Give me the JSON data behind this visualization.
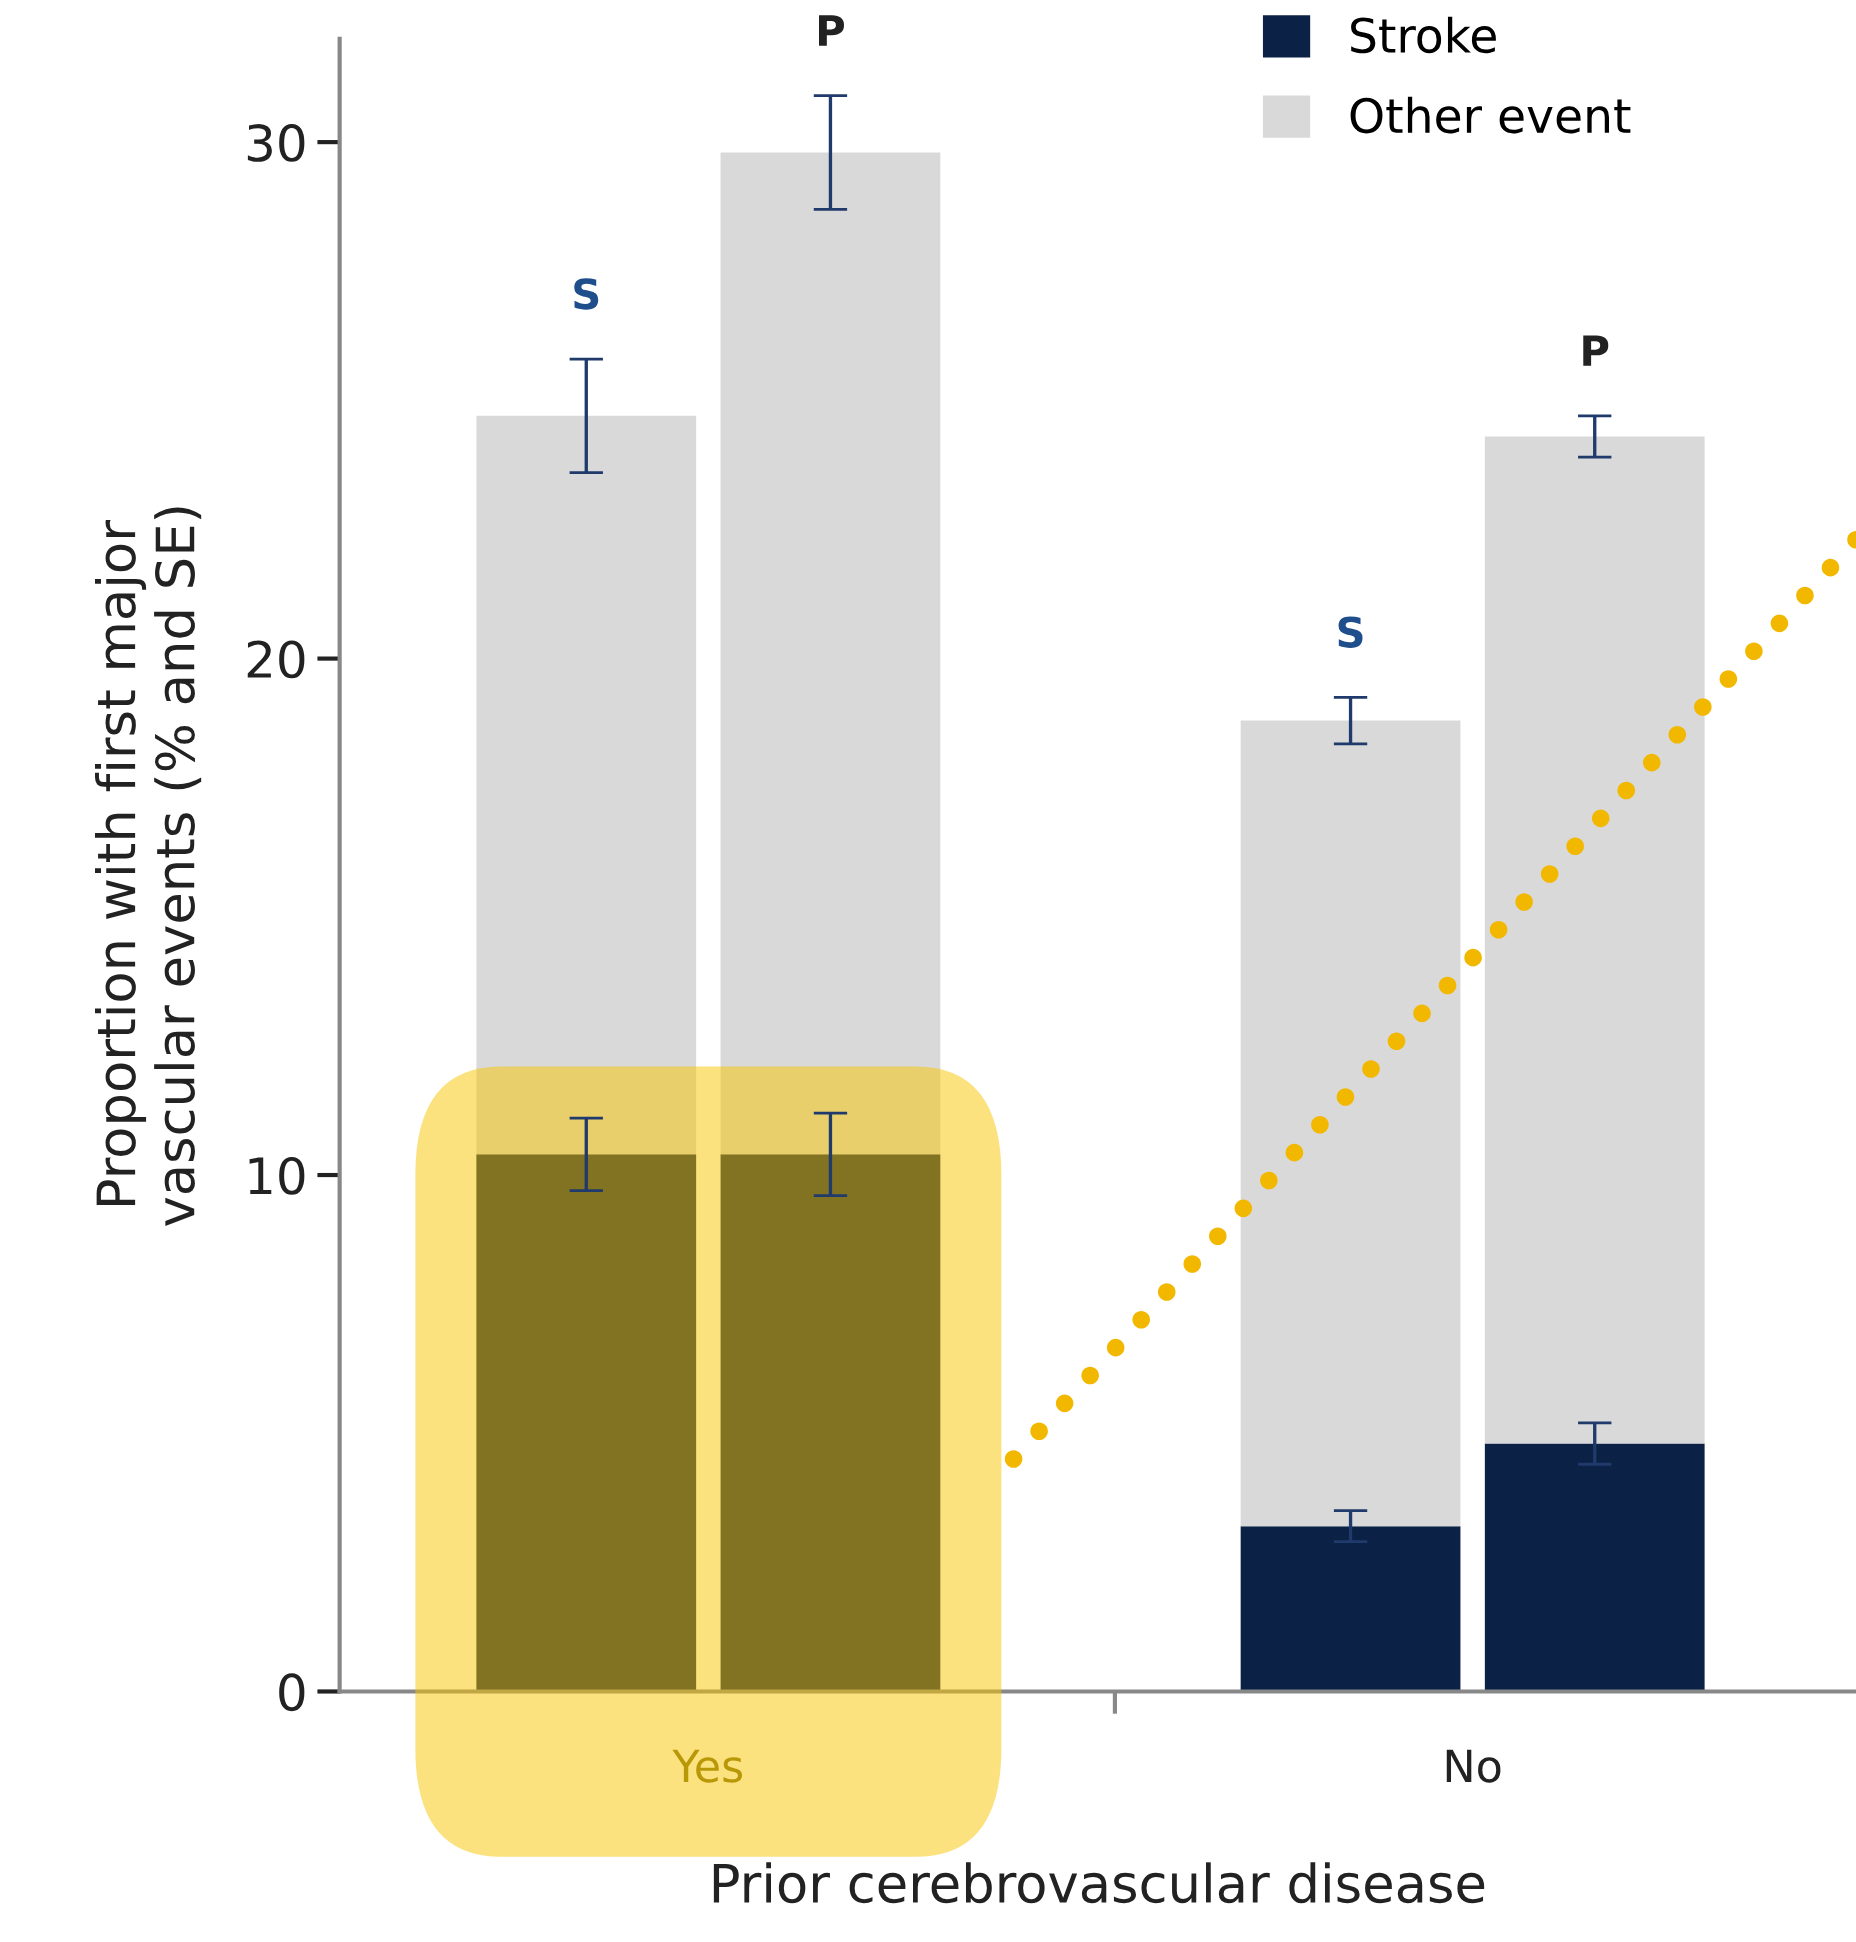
{
  "chart_data": {
    "type": "bar",
    "stacked": true,
    "categories": [
      "S",
      "P",
      "S",
      "P"
    ],
    "series": [
      {
        "name": "Stroke",
        "color": "#0b2145",
        "values": [
          10.4,
          10.4,
          3.2,
          4.8
        ],
        "errors": [
          0.7,
          0.8,
          0.3,
          0.4
        ]
      },
      {
        "name": "Other event",
        "color": "#d9d9d9",
        "values": [
          14.3,
          19.4,
          15.6,
          19.5
        ],
        "errors": [
          1.1,
          1.1,
          0.45,
          0.4
        ]
      }
    ],
    "ylabel": "Proportion with first major\nvascular events (% and SE)",
    "xlabel": "Prior cerebrovascular disease",
    "annotations": [
      "Yes",
      "No"
    ],
    "ylim": [
      0,
      32
    ],
    "yticks": [
      0,
      10,
      20,
      30
    ],
    "legend": "top right",
    "grid": false
  }
}
